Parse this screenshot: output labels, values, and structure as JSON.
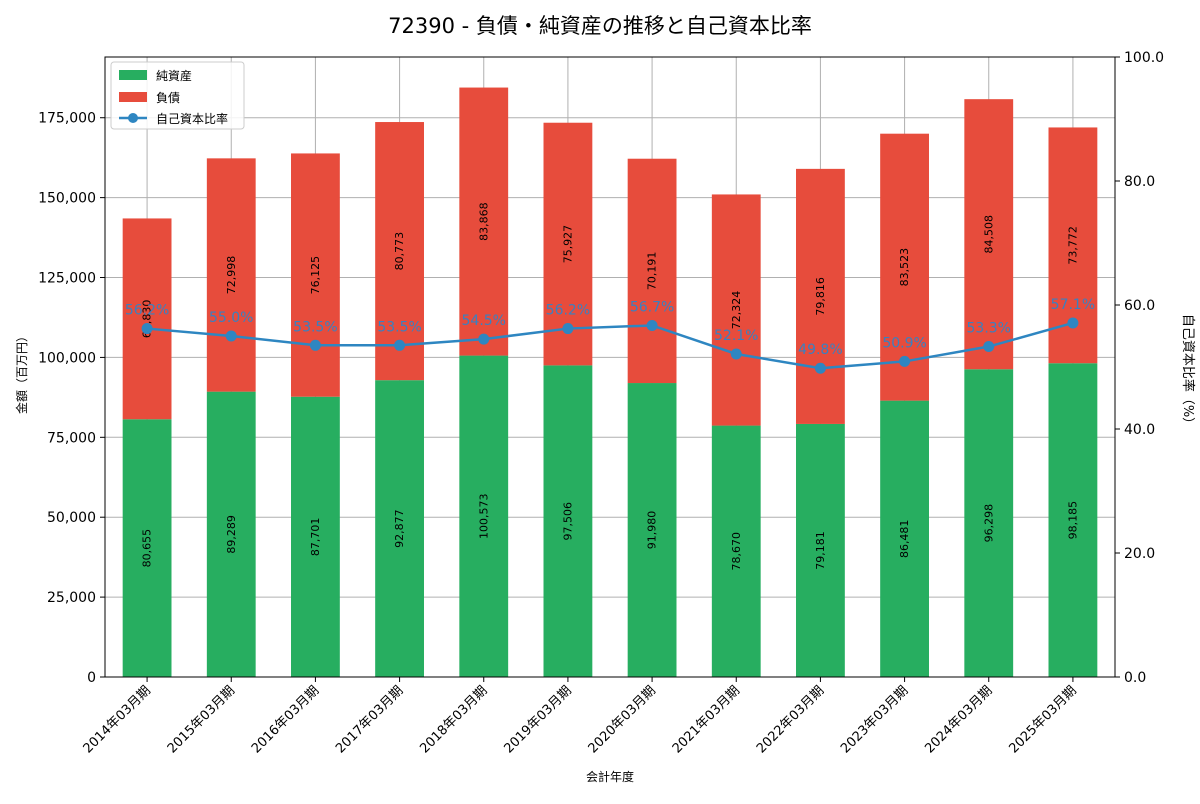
{
  "colors": {
    "net_assets": "#27ae60",
    "liabilities": "#e74c3c",
    "ratio_line": "#2e86c1",
    "ratio_label": "#3a80c0",
    "grid": "#b0b0b0",
    "axis": "#000000"
  },
  "chart_data": {
    "type": "bar",
    "title": "72390 - 負債・純資産の推移と自己資本比率",
    "xlabel": "会計年度",
    "ylabel": "金額（百万円）",
    "y2label": "自己資本比率（%）",
    "categories": [
      "2014年03月期",
      "2015年03月期",
      "2016年03月期",
      "2017年03月期",
      "2018年03月期",
      "2019年03月期",
      "2020年03月期",
      "2021年03月期",
      "2022年03月期",
      "2023年03月期",
      "2024年03月期",
      "2025年03月期"
    ],
    "series": [
      {
        "name": "純資産",
        "kind": "bar",
        "stack": "total",
        "color": "#27ae60",
        "values": [
          80655,
          89289,
          87701,
          92877,
          100573,
          97506,
          91980,
          78670,
          79181,
          86481,
          96298,
          98185
        ],
        "labels": [
          "80,655",
          "89,289",
          "87,701",
          "92,877",
          "100,573",
          "97,506",
          "91,980",
          "78,670",
          "79,181",
          "86,481",
          "96,298",
          "98,185"
        ]
      },
      {
        "name": "負債",
        "kind": "bar",
        "stack": "total",
        "color": "#e74c3c",
        "values": [
          62830,
          72998,
          76125,
          80773,
          83868,
          75927,
          70191,
          72324,
          79816,
          83523,
          84508,
          73772
        ],
        "labels": [
          "62,830",
          "72,998",
          "76,125",
          "80,773",
          "83,868",
          "75,927",
          "70,191",
          "72,324",
          "79,816",
          "83,523",
          "84,508",
          "73,772"
        ]
      },
      {
        "name": "自己資本比率",
        "kind": "line",
        "axis": "right",
        "color": "#2e86c1",
        "values": [
          56.2,
          55.0,
          53.5,
          53.5,
          54.5,
          56.2,
          56.7,
          52.1,
          49.8,
          50.9,
          53.3,
          57.1
        ],
        "labels": [
          "56.2%",
          "55.0%",
          "53.5%",
          "53.5%",
          "54.5%",
          "56.2%",
          "56.7%",
          "52.1%",
          "49.8%",
          "50.9%",
          "53.3%",
          "57.1%"
        ]
      }
    ],
    "ylim": [
      0,
      194000
    ],
    "yticks": [
      0,
      25000,
      50000,
      75000,
      100000,
      125000,
      150000,
      175000
    ],
    "ytick_labels": [
      "0",
      "25,000",
      "50,000",
      "75,000",
      "100,000",
      "125,000",
      "150,000",
      "175,000"
    ],
    "y2lim": [
      0,
      100
    ],
    "y2ticks": [
      0,
      20,
      40,
      60,
      80,
      100
    ],
    "y2tick_labels": [
      "0.0",
      "20.0",
      "40.0",
      "60.0",
      "80.0",
      "100.0"
    ],
    "grid": true,
    "legend_position": "top-left"
  }
}
